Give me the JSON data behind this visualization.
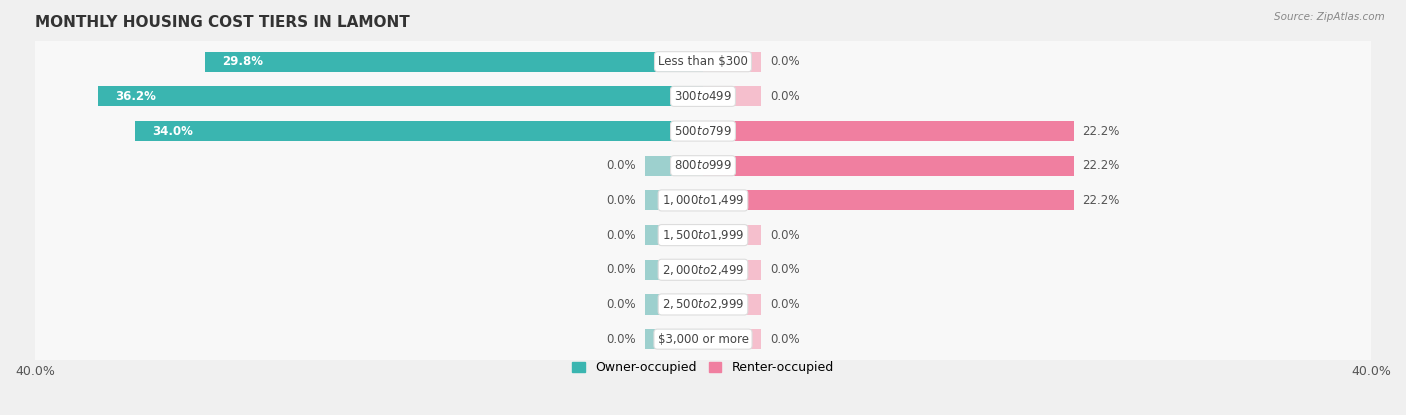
{
  "title": "MONTHLY HOUSING COST TIERS IN LAMONT",
  "source": "Source: ZipAtlas.com",
  "categories": [
    "Less than $300",
    "$300 to $499",
    "$500 to $799",
    "$800 to $999",
    "$1,000 to $1,499",
    "$1,500 to $1,999",
    "$2,000 to $2,499",
    "$2,500 to $2,999",
    "$3,000 or more"
  ],
  "owner_values": [
    29.8,
    36.2,
    34.0,
    0.0,
    0.0,
    0.0,
    0.0,
    0.0,
    0.0
  ],
  "renter_values": [
    0.0,
    0.0,
    22.2,
    22.2,
    22.2,
    0.0,
    0.0,
    0.0,
    0.0
  ],
  "owner_color": "#3ab5b0",
  "renter_color": "#f07fa0",
  "owner_color_zero": "#9dd0ce",
  "renter_color_zero": "#f5bfcd",
  "axis_max": 40.0,
  "background_color": "#f0f0f0",
  "row_bg_color": "#f8f8f8",
  "label_font_size": 8.5,
  "title_font_size": 11,
  "bar_height": 0.58,
  "stub_size": 3.5
}
